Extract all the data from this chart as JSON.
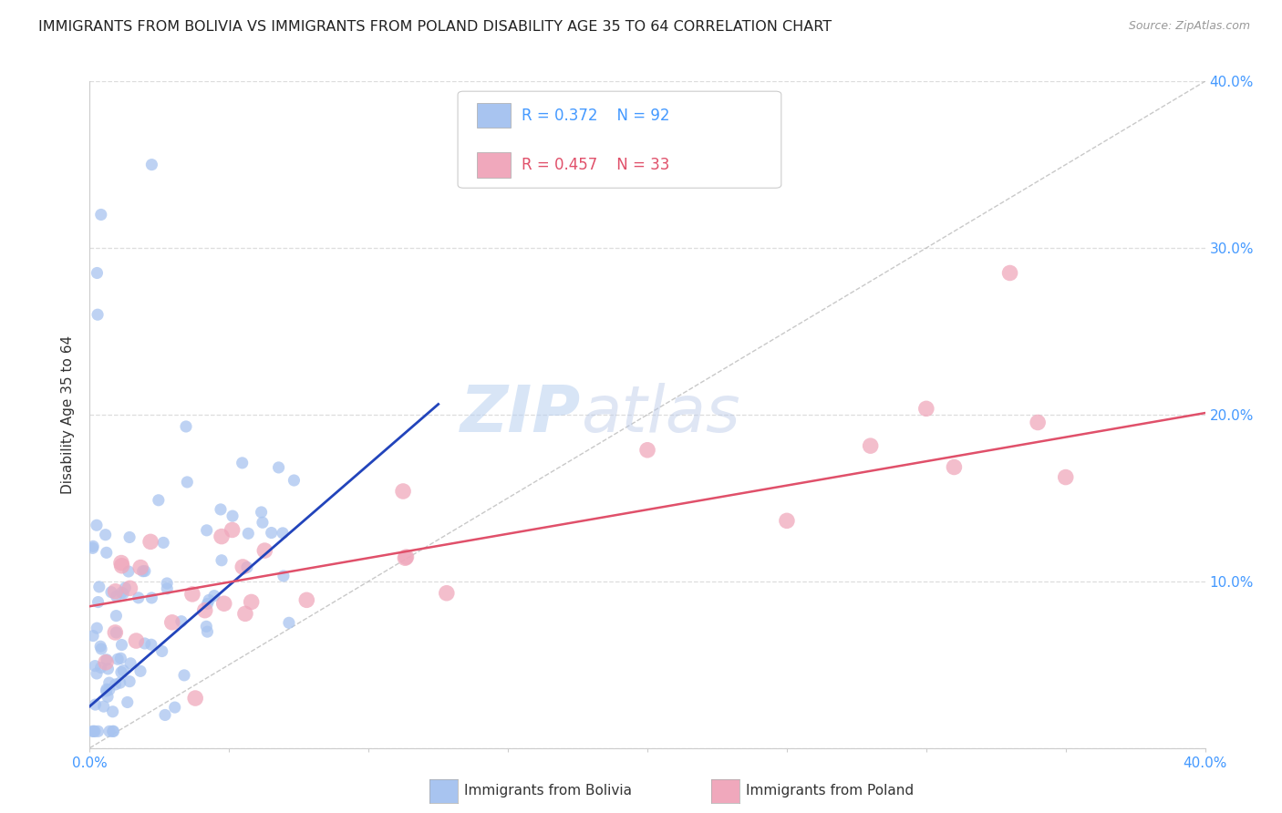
{
  "title": "IMMIGRANTS FROM BOLIVIA VS IMMIGRANTS FROM POLAND DISABILITY AGE 35 TO 64 CORRELATION CHART",
  "source": "Source: ZipAtlas.com",
  "ylabel": "Disability Age 35 to 64",
  "xlim": [
    0.0,
    0.4
  ],
  "ylim": [
    0.0,
    0.4
  ],
  "bolivia_color": "#a8c4f0",
  "poland_color": "#f0a8bc",
  "bolivia_line_color": "#2244bb",
  "poland_line_color": "#e0506a",
  "diagonal_color": "#bbbbbb",
  "background_color": "#ffffff",
  "grid_color": "#dddddd",
  "watermark_zip": "ZIP",
  "watermark_atlas": "atlas",
  "title_fontsize": 11.5,
  "axis_label_fontsize": 11,
  "tick_fontsize": 11,
  "watermark_fontsize": 52
}
